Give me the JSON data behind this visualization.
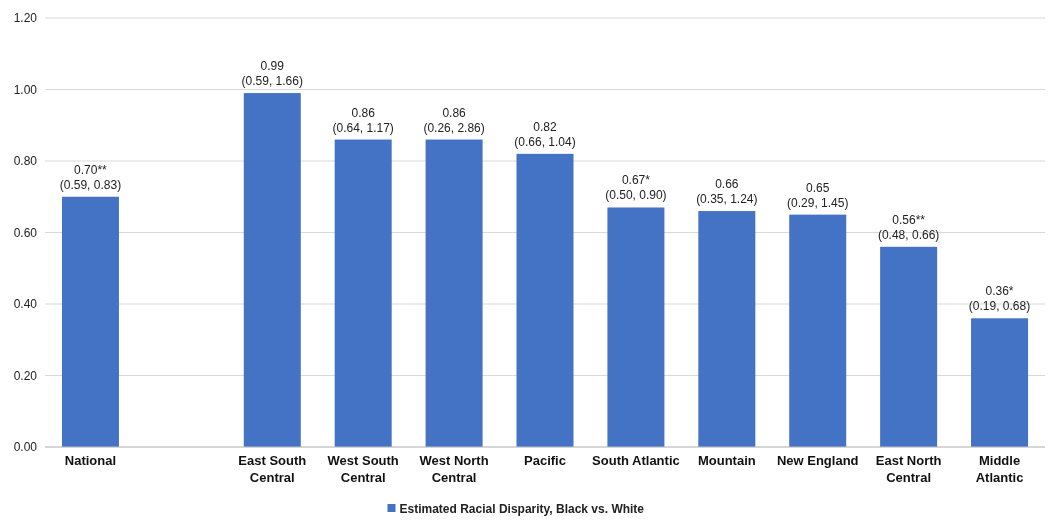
{
  "chart_data": {
    "type": "bar",
    "categories": [
      "National",
      null,
      "East South Central",
      "West South Central",
      "West North Central",
      "Pacific",
      "South Atlantic",
      "Mountain",
      "New England",
      "East North Central",
      "Middle Atlantic"
    ],
    "series": [
      {
        "name": "Estimated Racial Disparity, Black vs. White",
        "color": "#4472c4",
        "values": [
          0.7,
          null,
          0.99,
          0.86,
          0.86,
          0.82,
          0.67,
          0.66,
          0.65,
          0.56,
          0.36
        ],
        "value_labels": [
          "0.70**\n(0.59, 0.83)",
          null,
          "0.99\n(0.59, 1.66)",
          "0.86\n(0.64, 1.17)",
          "0.86\n(0.26, 2.86)",
          "0.82\n(0.66, 1.04)",
          "0.67*\n(0.50, 0.90)",
          "0.66\n(0.35, 1.24)",
          "0.65\n(0.29, 1.45)",
          "0.56**\n(0.48, 0.66)",
          "0.36*\n(0.19, 0.68)"
        ]
      }
    ],
    "ylim": [
      0,
      1.2
    ],
    "yticks": [
      {
        "value": 0,
        "label": "0.00"
      },
      {
        "value": 0.2,
        "label": "0.20"
      },
      {
        "value": 0.4,
        "label": "0.40"
      },
      {
        "value": 0.6,
        "label": "0.60"
      },
      {
        "value": 0.8,
        "label": "0.80"
      },
      {
        "value": 1.0,
        "label": "1.00"
      },
      {
        "value": 1.2,
        "label": "1.20"
      }
    ],
    "grid": "y",
    "legend": "bottom"
  }
}
